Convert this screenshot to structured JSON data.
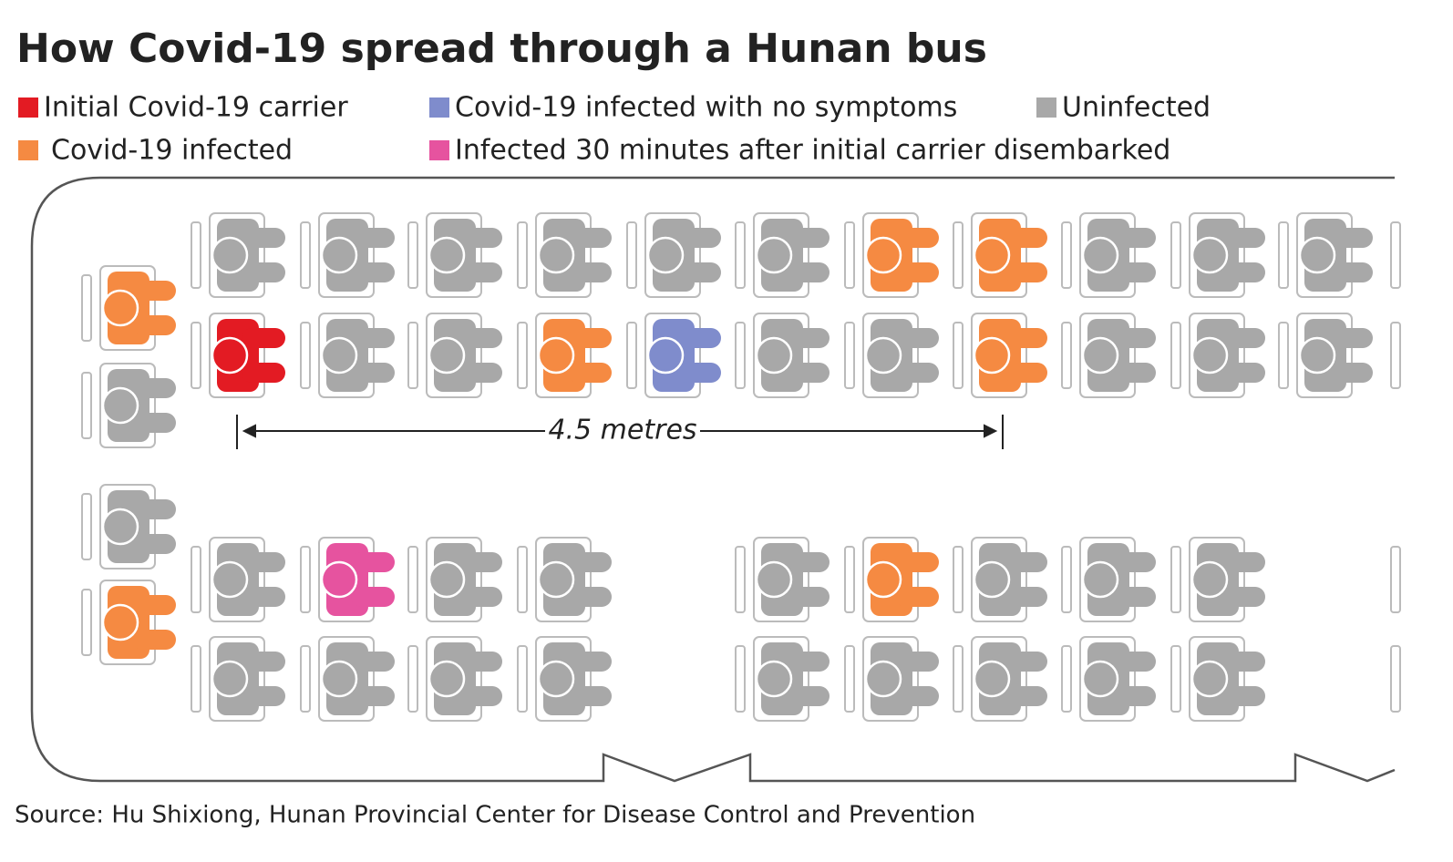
{
  "title": "How Covid-19 spread through a Hunan bus",
  "legend": [
    {
      "label": "Initial Covid-19 carrier",
      "color": "#e31b23"
    },
    {
      "label": "Covid-19 infected with no symptoms",
      "color": "#7f8ccc"
    },
    {
      "label": "Uninfected",
      "color": "#a8a8a8"
    },
    {
      "label": "Covid-19 infected",
      "color": "#f58a42"
    },
    {
      "label": "Infected 30 minutes after initial carrier disembarked",
      "color": "#e6539f"
    }
  ],
  "distance_label": "4.5 metres",
  "source": "Source: Hu Shixiong, Hunan Provincial Center for Disease Control and Prevention"
}
